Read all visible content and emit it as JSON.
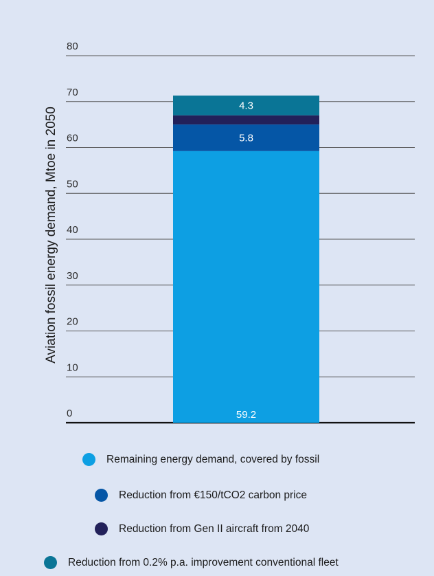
{
  "chart_data": {
    "type": "bar",
    "stacked": true,
    "title": "",
    "ylabel": "Aviation fossil energy demand, Mtoe in 2050",
    "ylim": [
      0,
      80
    ],
    "yticks": [
      "0",
      "10",
      "20",
      "30",
      "40",
      "50",
      "60",
      "70",
      "80"
    ],
    "grid": true,
    "legend_position": "bottom",
    "categories": [
      ""
    ],
    "series": [
      {
        "name": "Remaining energy demand, covered by fossil",
        "values": [
          59.2
        ],
        "label": "59.2",
        "color": "#0d9fe3"
      },
      {
        "name": "Reduction from €150/tCO2 carbon price",
        "values": [
          5.8
        ],
        "label": "5.8",
        "color": "#0556a6"
      },
      {
        "name": "Reduction from Gen II aircraft from 2040",
        "values": [
          2.0
        ],
        "label": "",
        "color": "#22215a"
      },
      {
        "name": "Reduction from 0.2% p.a. improvement conventional fleet",
        "values": [
          4.3
        ],
        "label": "4.3",
        "color": "#0a7596"
      }
    ]
  }
}
